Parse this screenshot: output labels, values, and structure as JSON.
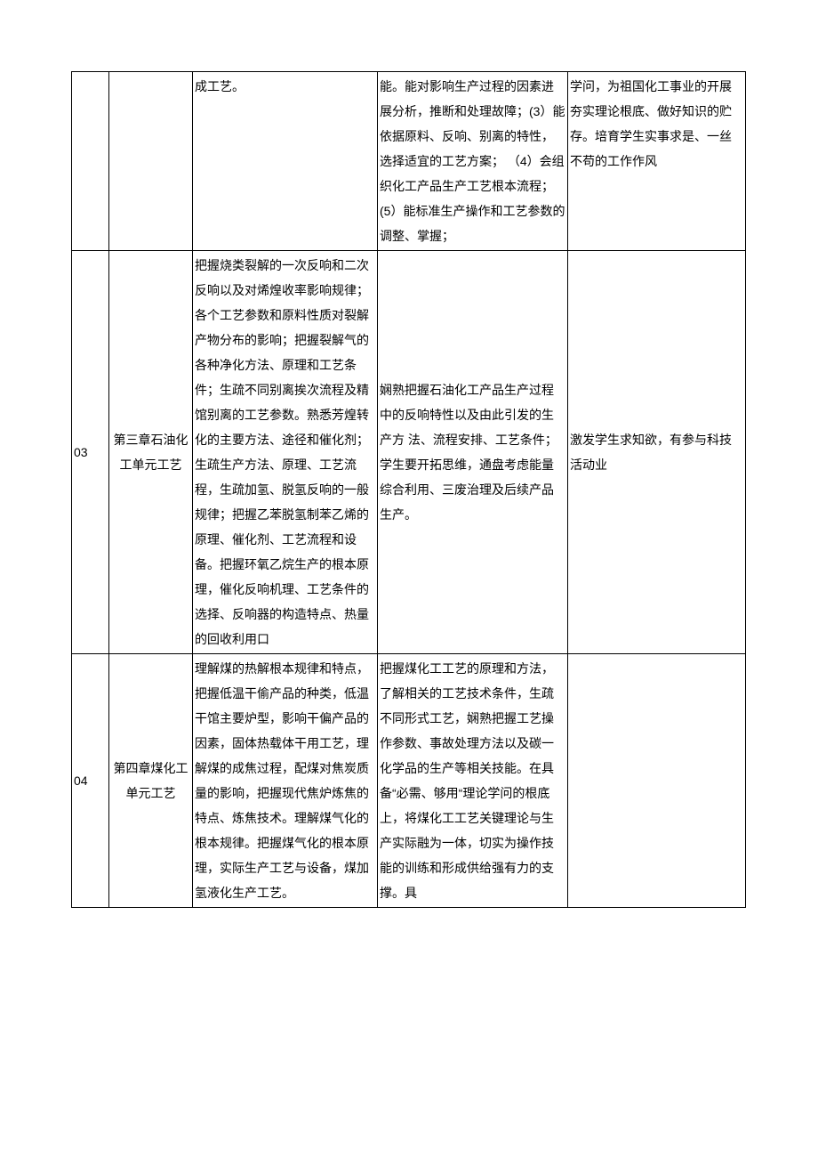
{
  "table": {
    "rows": [
      {
        "id": "",
        "title": "",
        "knowledge": "成工艺。",
        "skill": "能。能对影响生产过程的因素进展分析，推断和处理故障；(3）能依据原料、反响、别离的特性，选择适宜的工艺方案；\n（4）会组织化工产品生产工艺根本流程；(5）能标准生产操作和工艺参数的调整、掌握；",
        "moral": "学问，为祖国化工事业的开展夯实理论根底、做好知识的贮存。培育学生实事求是、一丝不苟的工作作风"
      },
      {
        "id": "03",
        "title": "第三章石油化工单元工艺",
        "knowledge": "把握烧类裂解的一次反响和二次反响以及对烯煌收率影响规律；各个工艺参数和原料性质对裂解产物分布的影响；把握裂解气的各种净化方法、原理和工艺条件；生疏不同别离挨次流程及精馆别离的工艺参数。熟悉芳煌转化的主要方法、途径和催化剂；生疏生产方法、原理、工艺流程，生疏加氢、脱氢反响的一般规律；把握乙苯脱氢制苯乙烯的原理、催化剂、工艺流程和设备。把握环氧乙烷生产的根本原理，催化反响机理、工艺条件的选择、反响器的构造特点、热量的回收利用口",
        "skill": "娴熟把握石油化工产品生产过程中的反响特性以及由此引发的生产方\n法、流程安排、工艺条件；学生要开拓思维，通盘考虑能量综合利用、三废治理及后续产品生产。",
        "moral": "激发学生求知欲，有参与科技活动业"
      },
      {
        "id": "04",
        "title": "第四章煤化工单元工艺",
        "knowledge": "理解煤的热解根本规律和特点，把握低温干偷产品的种类，低温干馆主要炉型，影响干偏产品的因素，固体热载体干用工艺，理解煤的成焦过程，配煤对焦炭质量的影响，把握现代焦炉炼焦的特点、炼焦技术。理解煤气化的根本规律。把握煤气化的根本原理，实际生产工艺与设备，煤加氢液化生产工艺。",
        "skill": "把握煤化工工艺的原理和方法，了解相关的工艺技术条件，生疏不同形式工艺，娴熟把握工艺操作参数、事故处理方法以及碳一化学品的生产等相关技能。在具备“必需、够用“理论学问的根底上，将煤化工工艺关键理论与生产实际融为一体，切实为操作技能的训练和形成供给强有力的支撑。具",
        "moral": ""
      }
    ]
  }
}
